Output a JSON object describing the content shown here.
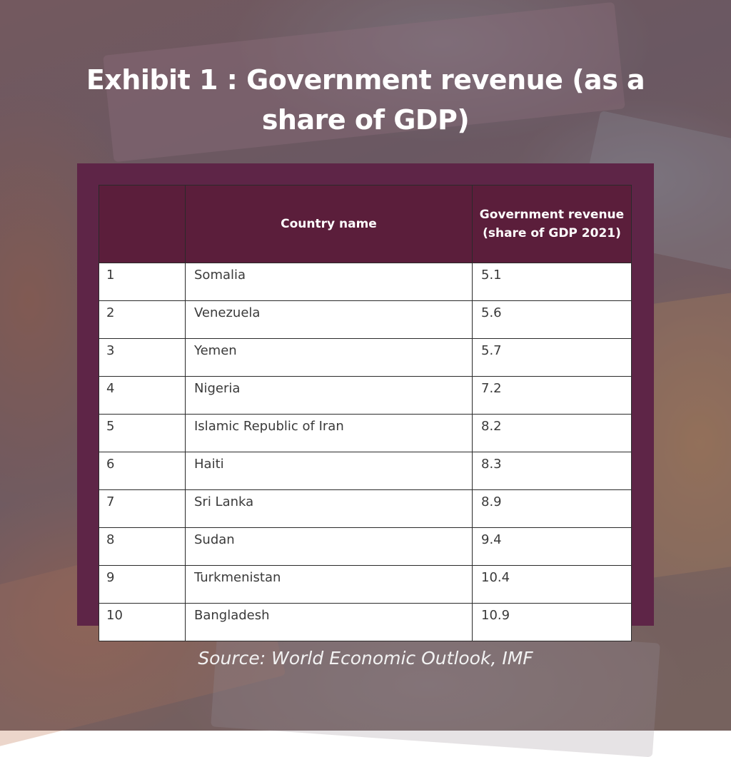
{
  "title_line1": "Exhibit 1 : Government revenue (as a",
  "title_line2": "share of GDP)",
  "source": "Source: World Economic Outlook, IMF",
  "colors": {
    "panel": "#5e2547",
    "header": "#5b1e3b",
    "cell": "#ffffff",
    "title_text": "#ffffff"
  },
  "chart_data": {
    "type": "table",
    "columns": [
      "",
      "Country name",
      "Government revenue (share of GDP 2021)"
    ],
    "rows": [
      {
        "rank": "1",
        "country": "Somalia",
        "value": "5.1"
      },
      {
        "rank": "2",
        "country": "Venezuela",
        "value": "5.6"
      },
      {
        "rank": "3",
        "country": "Yemen",
        "value": "5.7"
      },
      {
        "rank": "4",
        "country": "Nigeria",
        "value": "7.2"
      },
      {
        "rank": "5",
        "country": "Islamic Republic of Iran",
        "value": "8.2"
      },
      {
        "rank": "6",
        "country": "Haiti",
        "value": "8.3"
      },
      {
        "rank": "7",
        "country": "Sri Lanka",
        "value": "8.9"
      },
      {
        "rank": "8",
        "country": "Sudan",
        "value": "9.4"
      },
      {
        "rank": "9",
        "country": "Turkmenistan",
        "value": "10.4"
      },
      {
        "rank": "10",
        "country": "Bangladesh",
        "value": "10.9"
      }
    ]
  }
}
